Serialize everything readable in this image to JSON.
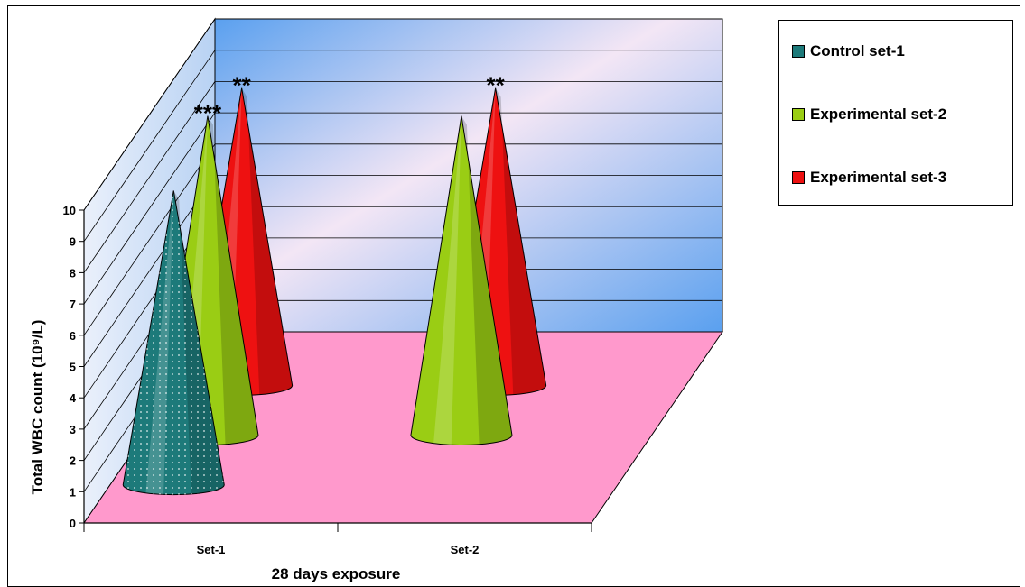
{
  "chart_data": {
    "type": "bar",
    "subtype": "3d-cone",
    "categories": [
      "Set-1",
      "Set-2"
    ],
    "series": [
      {
        "name": "Control set-1",
        "values": [
          9.4,
          null
        ],
        "color": "#1d7a7a",
        "significance": [
          "",
          ""
        ]
      },
      {
        "name": "Experimental set-2",
        "values": [
          10.2,
          10.2
        ],
        "color": "#9acd14",
        "significance": [
          "***",
          ""
        ]
      },
      {
        "name": "Experimental set-3",
        "values": [
          9.5,
          9.5
        ],
        "color": "#ee1111",
        "significance": [
          "**",
          "**"
        ]
      }
    ],
    "xlabel": "28 days exposure",
    "ylabel": "Total WBC count (10⁹/L)",
    "ylim": [
      0,
      10
    ],
    "yticks": [
      "0",
      "1",
      "2",
      "3",
      "4",
      "5",
      "6",
      "7",
      "8",
      "9",
      "10"
    ],
    "legend_position": "top-right",
    "grid": true,
    "colors": {
      "back_wall": "#b9d6f5",
      "floor": "#ff99cc",
      "side_wall": "#dfe8f7"
    }
  }
}
